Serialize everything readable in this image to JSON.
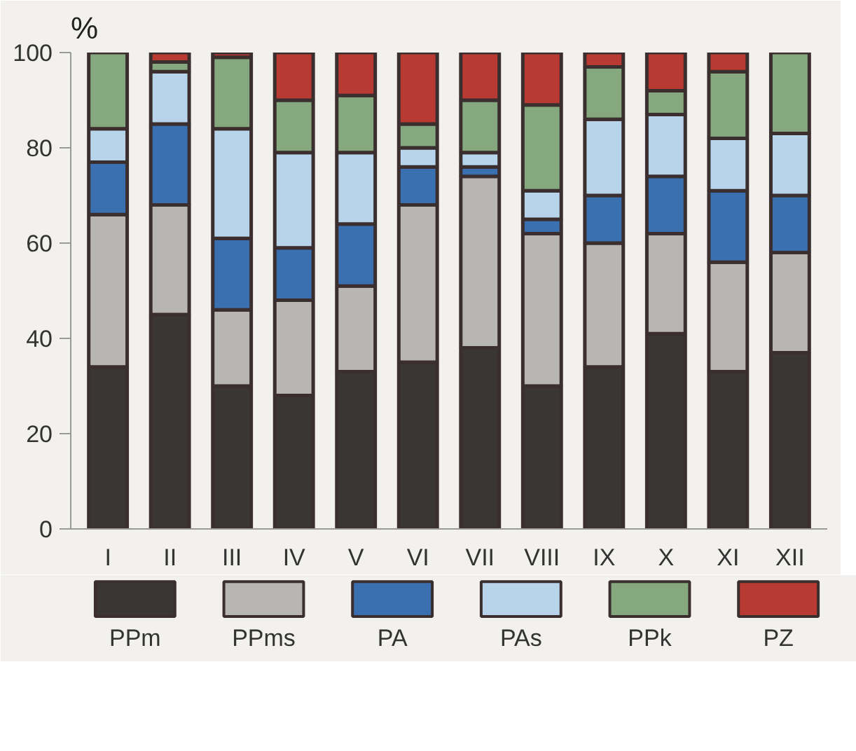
{
  "chart_data": {
    "type": "bar",
    "stacked": true,
    "ylabel": "%",
    "categories": [
      "I",
      "II",
      "III",
      "IV",
      "V",
      "VI",
      "VII",
      "VIII",
      "IX",
      "X",
      "XI",
      "XII"
    ],
    "ylim": [
      0,
      100
    ],
    "yticks": [
      0,
      20,
      40,
      60,
      80,
      100
    ],
    "grid": false,
    "legend": "bottom",
    "series": [
      {
        "name": "PPm",
        "color": "#3a3636",
        "values": [
          34,
          45,
          30,
          28,
          33,
          35,
          38,
          30,
          34,
          41,
          33,
          37
        ]
      },
      {
        "name": "PPms",
        "color": "#b8b6b2",
        "values": [
          32,
          23,
          16,
          20,
          18,
          33,
          36,
          32,
          26,
          21,
          23,
          21
        ]
      },
      {
        "name": "PA",
        "color": "#3a6fb0",
        "values": [
          11,
          17,
          15,
          11,
          13,
          8,
          2,
          3,
          10,
          12,
          15,
          12
        ]
      },
      {
        "name": "PAs",
        "color": "#b8d4ea",
        "values": [
          7,
          11,
          23,
          20,
          15,
          4,
          3,
          6,
          16,
          13,
          11,
          13
        ]
      },
      {
        "name": "PPk",
        "color": "#86a87e",
        "values": [
          16,
          2,
          15,
          11,
          12,
          5,
          11,
          18,
          11,
          5,
          14,
          17
        ]
      },
      {
        "name": "PZ",
        "color": "#b83a32",
        "values": [
          0,
          2,
          1,
          10,
          9,
          15,
          10,
          11,
          3,
          8,
          4,
          0
        ]
      }
    ]
  }
}
